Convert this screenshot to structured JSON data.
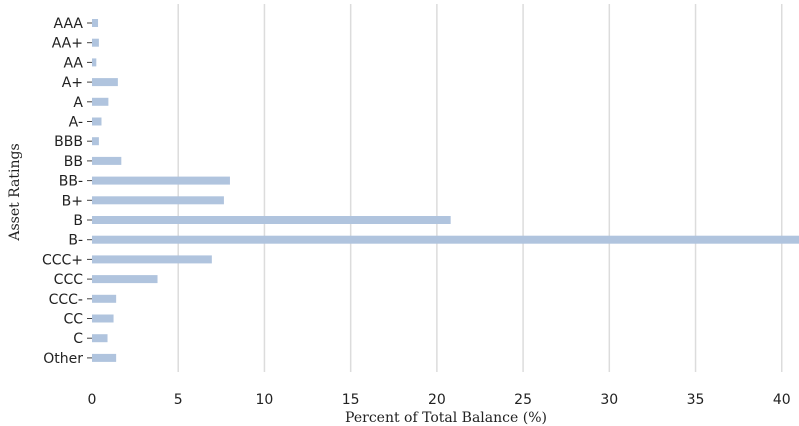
{
  "chart_data": {
    "type": "bar",
    "orientation": "horizontal",
    "categories": [
      "AAA",
      "AA+",
      "AA",
      "A+",
      "A",
      "A-",
      "BBB",
      "BB",
      "BB-",
      "B+",
      "B",
      "B-",
      "CCC+",
      "CCC",
      "CCC-",
      "CC",
      "C",
      "Other"
    ],
    "values": [
      0.35,
      0.4,
      0.25,
      1.5,
      0.95,
      0.55,
      0.4,
      1.7,
      8.0,
      7.65,
      20.8,
      42.0,
      6.95,
      3.8,
      1.4,
      1.25,
      0.9,
      1.4
    ],
    "xlabel": "Percent of Total Balance (%)",
    "ylabel": "Asset Ratings",
    "xlim": [
      0,
      41
    ],
    "xticks": [
      0,
      5,
      10,
      15,
      20,
      25,
      30,
      35,
      40
    ],
    "grid": "vertical",
    "bar_color": "#b0c4de"
  }
}
